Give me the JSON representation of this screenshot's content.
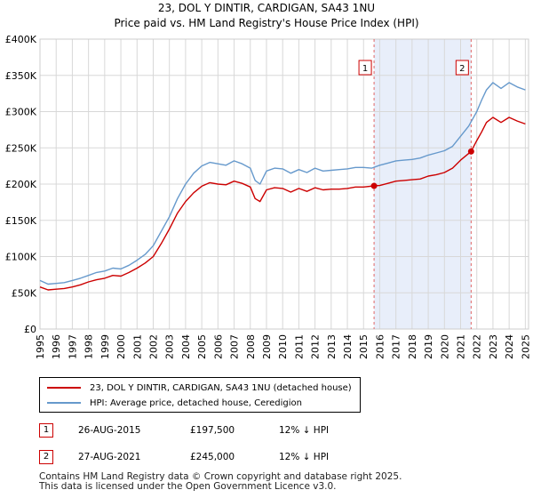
{
  "title": {
    "line1": "23, DOL Y DINTIR, CARDIGAN, SA43 1NU",
    "line2": "Price paid vs. HM Land Registry's House Price Index (HPI)"
  },
  "legend": {
    "property_label": "23, DOL Y DINTIR, CARDIGAN, SA43 1NU (detached house)",
    "hpi_label": "HPI: Average price, detached house, Ceredigion"
  },
  "colors": {
    "property": "#cc0000",
    "hpi": "#6699cc",
    "shade": "#e8eefa",
    "grid": "#d8d8d8",
    "vline": "#e06666"
  },
  "sales": [
    {
      "marker": "1",
      "date": "26-AUG-2015",
      "price": "£197,500",
      "hpi_diff": "12% ↓ HPI"
    },
    {
      "marker": "2",
      "date": "27-AUG-2021",
      "price": "£245,000",
      "hpi_diff": "12% ↓ HPI"
    }
  ],
  "footer": {
    "line1": "Contains HM Land Registry data © Crown copyright and database right 2025.",
    "line2": "This data is licensed under the Open Government Licence v3.0."
  },
  "chart_data": {
    "type": "line",
    "title": "23, DOL Y DINTIR, CARDIGAN, SA43 1NU",
    "subtitle": "Price paid vs. HM Land Registry's House Price Index (HPI)",
    "xlabel": "",
    "ylabel": "",
    "xlim": [
      1995.0,
      2025.2
    ],
    "ylim": [
      0,
      400000
    ],
    "x_ticks": [
      1995,
      1996,
      1997,
      1998,
      1999,
      2000,
      2001,
      2002,
      2003,
      2004,
      2005,
      2006,
      2007,
      2008,
      2009,
      2010,
      2011,
      2012,
      2013,
      2014,
      2015,
      2016,
      2017,
      2018,
      2019,
      2020,
      2021,
      2022,
      2023,
      2024,
      2025
    ],
    "y_ticks": [
      {
        "value": 0,
        "label": "£0"
      },
      {
        "value": 50000,
        "label": "£50K"
      },
      {
        "value": 100000,
        "label": "£100K"
      },
      {
        "value": 150000,
        "label": "£150K"
      },
      {
        "value": 200000,
        "label": "£200K"
      },
      {
        "value": 250000,
        "label": "£250K"
      },
      {
        "value": 300000,
        "label": "£300K"
      },
      {
        "value": 350000,
        "label": "£350K"
      },
      {
        "value": 400000,
        "label": "£400K"
      }
    ],
    "grid": true,
    "shaded_range": [
      2015.65,
      2021.65
    ],
    "sale_markers": [
      {
        "label": "1",
        "x": 2015.65,
        "y": 197500
      },
      {
        "label": "2",
        "x": 2021.65,
        "y": 245000
      }
    ],
    "series": [
      {
        "name": "HPI: Average price, detached house, Ceredigion",
        "x": [
          1995.0,
          1995.5,
          1996.0,
          1996.5,
          1997.0,
          1997.5,
          1998.0,
          1998.5,
          1999.0,
          1999.5,
          2000.0,
          2000.5,
          2001.0,
          2001.5,
          2002.0,
          2002.5,
          2003.0,
          2003.5,
          2004.0,
          2004.5,
          2005.0,
          2005.5,
          2006.0,
          2006.5,
          2007.0,
          2007.5,
          2008.0,
          2008.3,
          2008.6,
          2009.0,
          2009.5,
          2010.0,
          2010.5,
          2011.0,
          2011.5,
          2012.0,
          2012.5,
          2013.0,
          2013.5,
          2014.0,
          2014.5,
          2015.0,
          2015.5,
          2016.0,
          2016.5,
          2017.0,
          2017.5,
          2018.0,
          2018.5,
          2019.0,
          2019.5,
          2020.0,
          2020.5,
          2021.0,
          2021.5,
          2022.0,
          2022.3,
          2022.6,
          2023.0,
          2023.5,
          2024.0,
          2024.5,
          2025.0
        ],
        "values": [
          67000,
          62000,
          63000,
          64000,
          67000,
          70000,
          74000,
          78000,
          80000,
          84000,
          83000,
          88000,
          95000,
          103000,
          115000,
          135000,
          155000,
          180000,
          200000,
          215000,
          225000,
          230000,
          228000,
          226000,
          232000,
          228000,
          222000,
          205000,
          200000,
          218000,
          222000,
          221000,
          215000,
          220000,
          216000,
          222000,
          218000,
          219000,
          220000,
          221000,
          223000,
          223000,
          222000,
          226000,
          229000,
          232000,
          233000,
          234000,
          236000,
          240000,
          243000,
          246000,
          252000,
          266000,
          280000,
          300000,
          316000,
          330000,
          340000,
          332000,
          340000,
          334000,
          330000
        ]
      },
      {
        "name": "23, DOL Y DINTIR, CARDIGAN, SA43 1NU (detached house)",
        "x": [
          1995.0,
          1995.5,
          1996.0,
          1996.5,
          1997.0,
          1997.5,
          1998.0,
          1998.5,
          1999.0,
          1999.5,
          2000.0,
          2000.5,
          2001.0,
          2001.5,
          2002.0,
          2002.5,
          2003.0,
          2003.5,
          2004.0,
          2004.5,
          2005.0,
          2005.5,
          2006.0,
          2006.5,
          2007.0,
          2007.5,
          2008.0,
          2008.3,
          2008.6,
          2009.0,
          2009.5,
          2010.0,
          2010.5,
          2011.0,
          2011.5,
          2012.0,
          2012.5,
          2013.0,
          2013.5,
          2014.0,
          2014.5,
          2015.0,
          2015.65,
          2016.0,
          2016.5,
          2017.0,
          2017.5,
          2018.0,
          2018.5,
          2019.0,
          2019.5,
          2020.0,
          2020.5,
          2021.0,
          2021.65,
          2022.0,
          2022.3,
          2022.6,
          2023.0,
          2023.5,
          2024.0,
          2024.5,
          2025.0
        ],
        "values": [
          58000,
          54000,
          55000,
          56000,
          58000,
          61000,
          65000,
          68000,
          70000,
          74000,
          73000,
          78000,
          84000,
          91000,
          100000,
          118000,
          138000,
          160000,
          176000,
          188000,
          197000,
          202000,
          200000,
          199000,
          204000,
          201000,
          196000,
          180000,
          176000,
          192000,
          195000,
          194000,
          189000,
          194000,
          190000,
          195000,
          192000,
          193000,
          193000,
          194000,
          196000,
          196000,
          197500,
          198000,
          201000,
          204000,
          205000,
          206000,
          207000,
          211000,
          213000,
          216000,
          222000,
          233000,
          245000,
          260000,
          272000,
          285000,
          292000,
          285000,
          292000,
          287000,
          283000
        ]
      }
    ]
  }
}
